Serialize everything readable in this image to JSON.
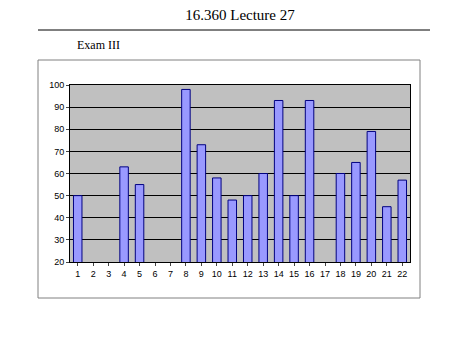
{
  "chart_data": {
    "type": "bar",
    "title": "16.360 Lecture 27",
    "subtitle": "Exam III",
    "categories": [
      "1",
      "2",
      "3",
      "4",
      "5",
      "6",
      "7",
      "8",
      "9",
      "10",
      "11",
      "12",
      "13",
      "14",
      "15",
      "16",
      "17",
      "18",
      "19",
      "20",
      "21",
      "22"
    ],
    "values": [
      50,
      null,
      null,
      63,
      55,
      null,
      null,
      98,
      73,
      58,
      48,
      50,
      60,
      93,
      50,
      93,
      null,
      60,
      65,
      79,
      45,
      57
    ],
    "color": "#9999ff",
    "ylim": [
      20,
      100
    ],
    "yticks": [
      20,
      30,
      40,
      50,
      60,
      70,
      80,
      90,
      100
    ],
    "grid": true
  }
}
